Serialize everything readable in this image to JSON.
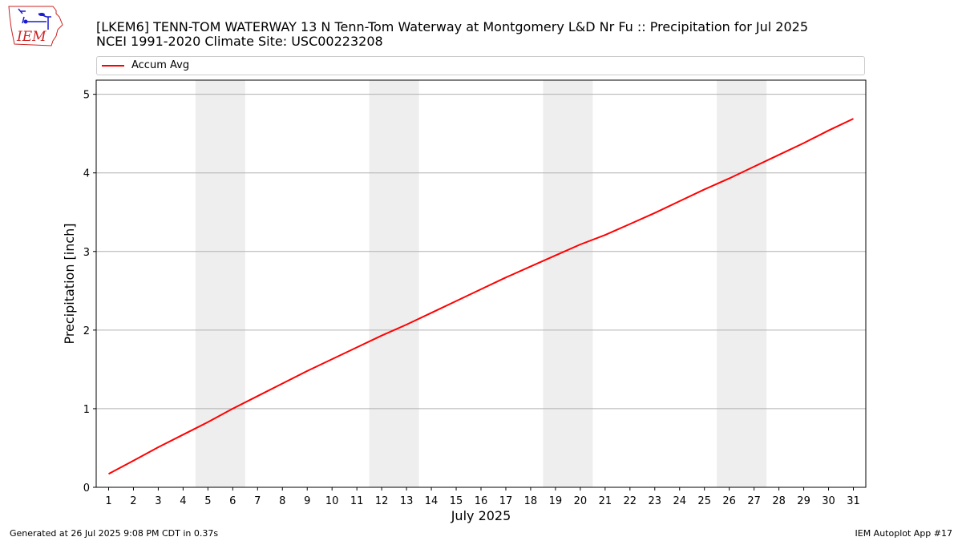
{
  "header": {
    "title_line1": "[LKEM6] TENN-TOM WATERWAY 13 N Tenn-Tom Waterway at Montgomery L&D Nr Fu :: Precipitation for Jul 2025",
    "title_line2": "NCEI 1991-2020 Climate Site: USC00223208"
  },
  "logo": {
    "text": "IEM",
    "icon": "iem-logo-icon"
  },
  "legend": {
    "label": "Accum Avg",
    "color": "#ff0000"
  },
  "footer": {
    "left": "Generated at 26 Jul 2025 9:08 PM CDT in 0.37s",
    "right": "IEM Autoplot App #17"
  },
  "colors": {
    "line": "#ff0000",
    "weekend_band": "#eeeeee",
    "grid": "#b0b0b0"
  },
  "chart_data": {
    "type": "line",
    "xlabel": "July 2025",
    "ylabel": "Precipitation [inch]",
    "xlim": [
      0.5,
      31.5
    ],
    "ylim": [
      0,
      5.18
    ],
    "yticks": [
      0,
      1,
      2,
      3,
      4,
      5
    ],
    "x": [
      1,
      2,
      3,
      4,
      5,
      6,
      7,
      8,
      9,
      10,
      11,
      12,
      13,
      14,
      15,
      16,
      17,
      18,
      19,
      20,
      21,
      22,
      23,
      24,
      25,
      26,
      27,
      28,
      29,
      30,
      31
    ],
    "xtick_labels": [
      "1",
      "2",
      "3",
      "4",
      "5",
      "6",
      "7",
      "8",
      "9",
      "10",
      "11",
      "12",
      "13",
      "14",
      "15",
      "16",
      "17",
      "18",
      "19",
      "20",
      "21",
      "22",
      "23",
      "24",
      "25",
      "26",
      "27",
      "28",
      "29",
      "30",
      "31"
    ],
    "grid": "y",
    "legend_position": "top",
    "shaded_ranges": [
      [
        4.5,
        6.5
      ],
      [
        11.5,
        13.5
      ],
      [
        18.5,
        20.5
      ],
      [
        25.5,
        27.5
      ]
    ],
    "series": [
      {
        "name": "Accum Avg",
        "color": "#ff0000",
        "values": [
          0.17,
          0.34,
          0.51,
          0.67,
          0.83,
          1.0,
          1.16,
          1.32,
          1.48,
          1.63,
          1.78,
          1.93,
          2.07,
          2.22,
          2.37,
          2.52,
          2.67,
          2.81,
          2.95,
          3.09,
          3.21,
          3.35,
          3.49,
          3.64,
          3.79,
          3.93,
          4.08,
          4.23,
          4.38,
          4.54,
          4.69
        ]
      }
    ]
  }
}
